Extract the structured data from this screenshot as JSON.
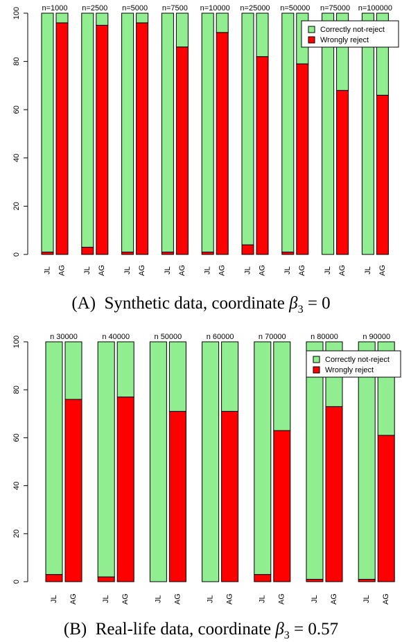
{
  "chart_data": [
    {
      "type": "bar",
      "stacked": true,
      "panel": "A",
      "groups": [
        "n=1000",
        "n=2500",
        "n=5000",
        "n=7500",
        "n=10000",
        "n=25000",
        "n=50000",
        "n=75000",
        "n=100000"
      ],
      "bar_labels": [
        "JL",
        "AG"
      ],
      "series": [
        {
          "name": "Correctly not-reject",
          "color": "#90ee90",
          "JL": [
            99,
            97,
            99,
            99,
            99,
            96,
            99,
            100,
            100
          ],
          "AG": [
            4,
            5,
            4,
            14,
            8,
            18,
            21,
            32,
            34
          ]
        },
        {
          "name": "Wrongly reject",
          "color": "#ff0000",
          "JL": [
            1,
            3,
            1,
            1,
            1,
            4,
            1,
            0,
            0
          ],
          "AG": [
            96,
            95,
            96,
            86,
            92,
            82,
            79,
            68,
            66
          ]
        }
      ],
      "ylim": [
        0,
        100
      ],
      "yticks": [
        0,
        20,
        40,
        60,
        80,
        100
      ],
      "legend_position": "top-right",
      "caption_label": "(A)",
      "caption_text": "Synthetic data, coordinate ",
      "caption_symbol": "β",
      "caption_sub": "3",
      "caption_rest": " = 0"
    },
    {
      "type": "bar",
      "stacked": true,
      "panel": "B",
      "groups": [
        "n 30000",
        "n 40000",
        "n 50000",
        "n 60000",
        "n 70000",
        "n 80000",
        "n 90000"
      ],
      "bar_labels": [
        "JL",
        "AG"
      ],
      "series": [
        {
          "name": "Correctly not-reject",
          "color": "#90ee90",
          "JL": [
            97,
            98,
            100,
            100,
            97,
            99,
            99
          ],
          "AG": [
            24,
            23,
            29,
            29,
            37,
            27,
            39
          ]
        },
        {
          "name": "Wrongly reject",
          "color": "#ff0000",
          "JL": [
            3,
            2,
            0,
            0,
            3,
            1,
            1
          ],
          "AG": [
            76,
            77,
            71,
            71,
            63,
            73,
            61
          ]
        }
      ],
      "ylim": [
        0,
        100
      ],
      "yticks": [
        0,
        20,
        40,
        60,
        80,
        100
      ],
      "legend_position": "top-right",
      "caption_label": "(B)",
      "caption_text": "Real-life data, coordinate ",
      "caption_symbol": "β",
      "caption_sub": "3",
      "caption_rest": " = 0.57"
    }
  ]
}
